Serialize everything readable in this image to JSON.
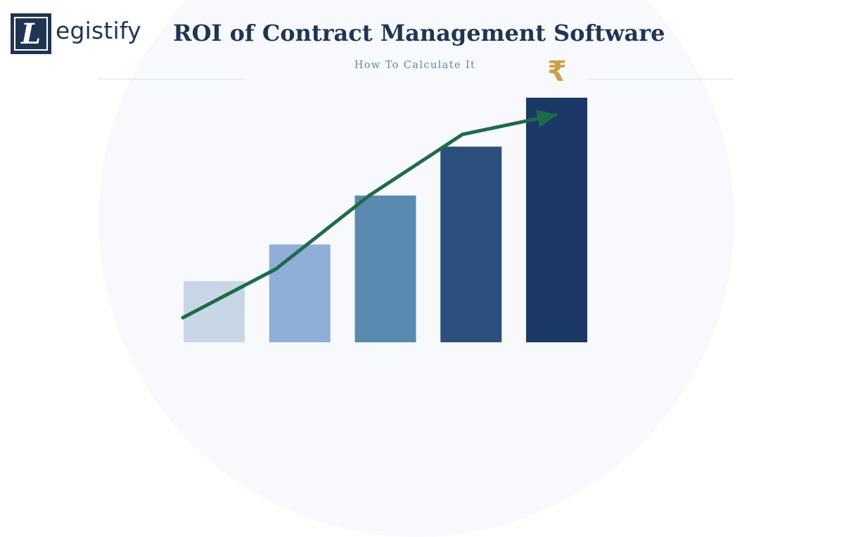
{
  "brand": {
    "logo_letter": "L",
    "logo_text": "egistify"
  },
  "header": {
    "title": "ROI of Contract Management Software",
    "subtitle": "How To Calculate It"
  },
  "currency_symbol": "₹",
  "colors": {
    "navy": "#1f3553",
    "trend_line": "#1e6b48",
    "rupee_gold": "#c9a24a",
    "bars": [
      "#c8d7e8",
      "#8fafd9",
      "#5b8ab0",
      "#2c507e",
      "#1b3866"
    ]
  },
  "chart_data": {
    "type": "bar",
    "categories": [
      "",
      "",
      "",
      "",
      ""
    ],
    "values": [
      25,
      40,
      60,
      80,
      100
    ],
    "trend": [
      10,
      30,
      60,
      85,
      93
    ],
    "ylim": [
      0,
      100
    ],
    "title": "",
    "xlabel": "",
    "ylabel": "",
    "grid": false,
    "legend": "none"
  }
}
